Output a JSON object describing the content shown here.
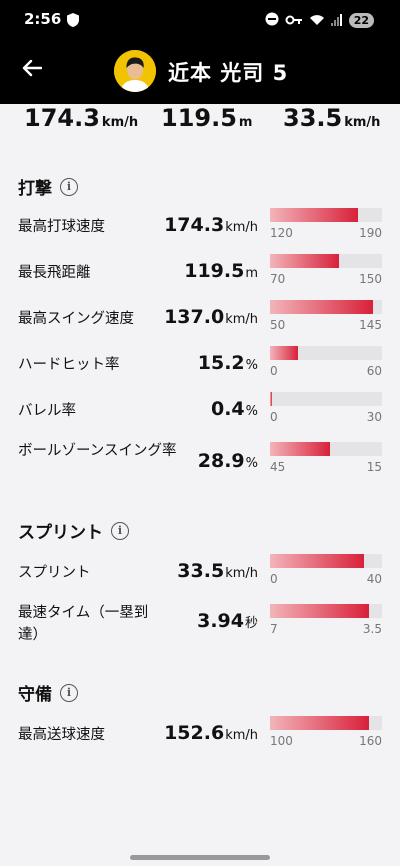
{
  "status_bar": {
    "time": "2:56",
    "battery": "22"
  },
  "header": {
    "player_name": "近本 光司 5"
  },
  "top_stats": [
    {
      "value": "174.3",
      "unit": "km/h"
    },
    {
      "value": "119.5",
      "unit": "m"
    },
    {
      "value": "33.5",
      "unit": "km/h"
    }
  ],
  "sections": {
    "batting": {
      "title": "打撃",
      "rows": [
        {
          "label": "最高打球速度",
          "value": "174.3",
          "unit": "km/h",
          "min": "120",
          "max": "190",
          "fill": 0.79
        },
        {
          "label": "最長飛距離",
          "value": "119.5",
          "unit": "m",
          "min": "70",
          "max": "150",
          "fill": 0.62
        },
        {
          "label": "最高スイング速度",
          "value": "137.0",
          "unit": "km/h",
          "min": "50",
          "max": "145",
          "fill": 0.92
        },
        {
          "label": "ハードヒット率",
          "value": "15.2",
          "unit": "%",
          "min": "0",
          "max": "60",
          "fill": 0.25
        },
        {
          "label": "バレル率",
          "value": "0.4",
          "unit": "%",
          "min": "0",
          "max": "30",
          "fill": 0.02
        },
        {
          "label": "ボールゾーンスイング率",
          "value": "28.9",
          "unit": "%",
          "min": "45",
          "max": "15",
          "fill": 0.54
        }
      ]
    },
    "sprint": {
      "title": "スプリント",
      "rows": [
        {
          "label": "スプリント",
          "value": "33.5",
          "unit": "km/h",
          "min": "0",
          "max": "40",
          "fill": 0.84
        },
        {
          "label": "最速タイム（一塁到達）",
          "value": "3.94",
          "unit": "秒",
          "min": "7",
          "max": "3.5",
          "fill": 0.88
        }
      ]
    },
    "defense": {
      "title": "守備",
      "rows": [
        {
          "label": "最高送球速度",
          "value": "152.6",
          "unit": "km/h",
          "min": "100",
          "max": "160",
          "fill": 0.88
        }
      ]
    }
  },
  "colors": {
    "bar_start": "#f3b4ba",
    "bar_end": "#d8213a",
    "bar_track": "#e4e3e6"
  }
}
